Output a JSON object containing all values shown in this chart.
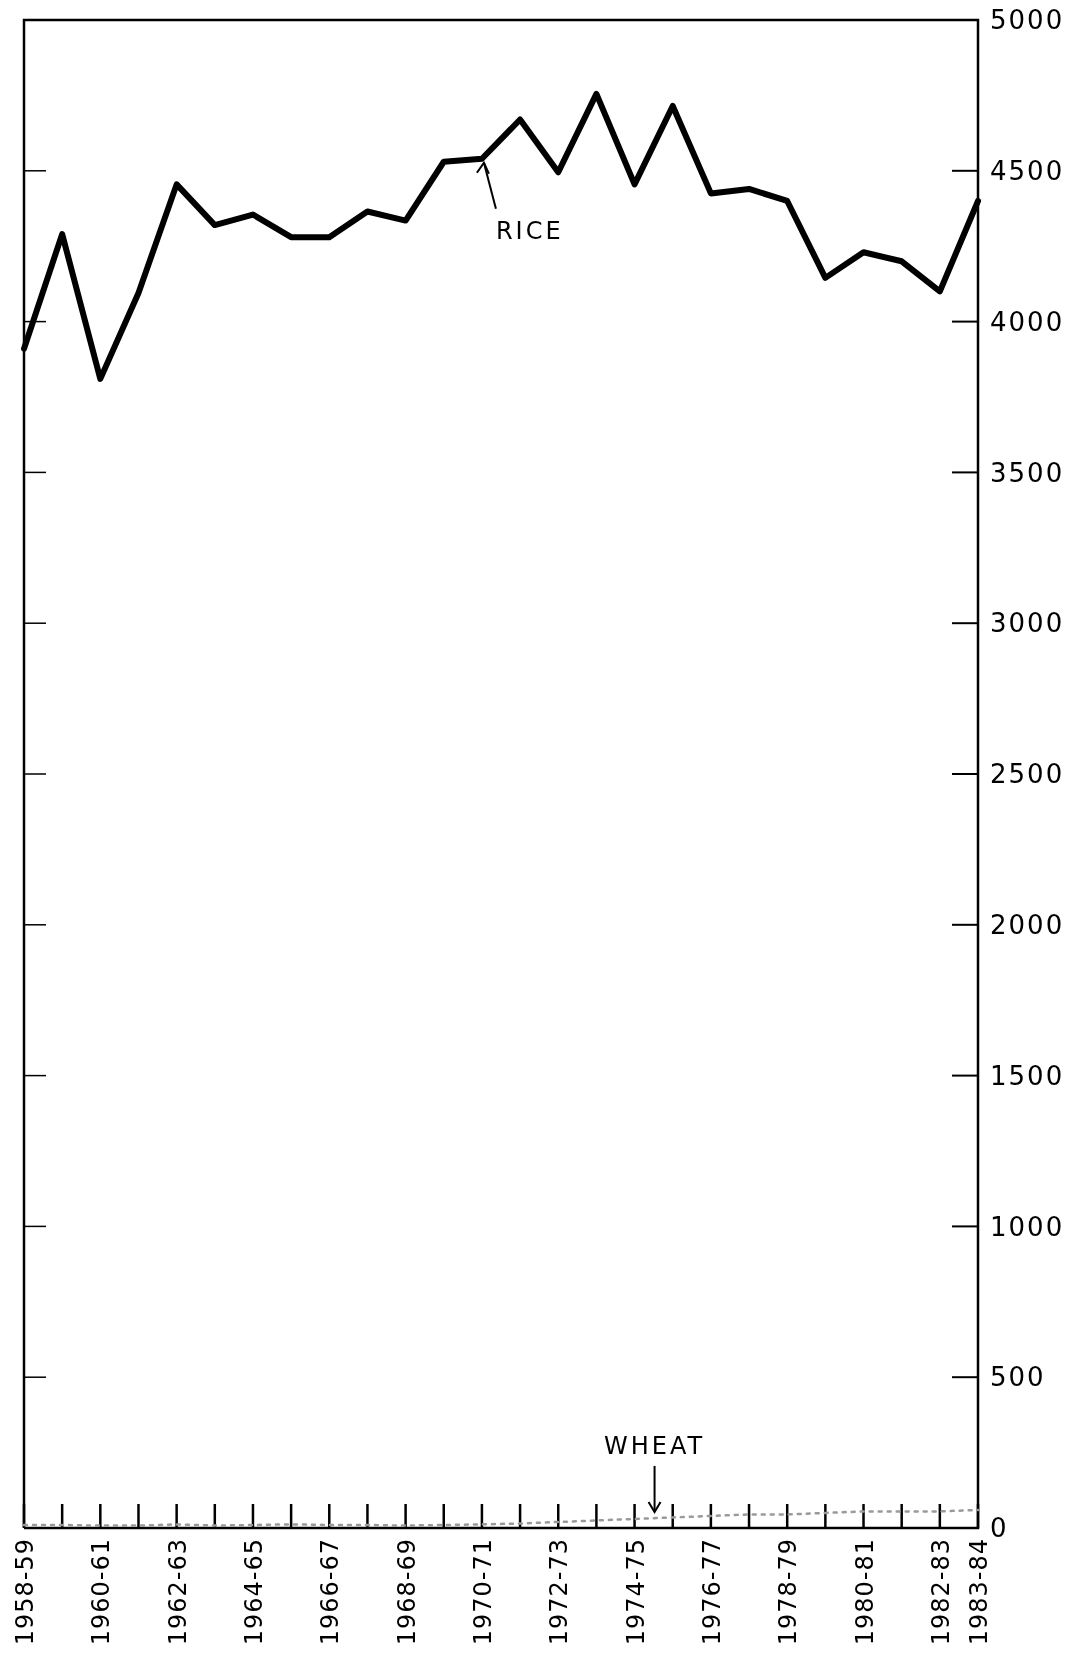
{
  "chart_data": {
    "type": "line",
    "categories": [
      "1958-59",
      null,
      "1960-61",
      null,
      "1962-63",
      null,
      "1964-65",
      null,
      "1966-67",
      null,
      "1968-69",
      null,
      "1970-71",
      null,
      "1972-73",
      null,
      "1974-75",
      null,
      "1976-77",
      null,
      "1978-79",
      null,
      "1980-81",
      null,
      "1982-83",
      "1983-84"
    ],
    "series": [
      {
        "color": "#000000",
        "line_style": "solid",
        "values": [
          3910,
          4290,
          3810,
          4095,
          4455,
          4320,
          4355,
          4280,
          4280,
          4365,
          4335,
          4530,
          4540,
          4670,
          4495,
          4755,
          4455,
          4715,
          4425,
          4440,
          4400,
          4145,
          4230,
          4200,
          4100,
          4400
        ]
      },
      {
        "color": "#9a9a9a",
        "line_style": "dotted",
        "values": [
          10,
          10,
          8,
          8,
          12,
          8,
          10,
          12,
          10,
          10,
          8,
          10,
          12,
          15,
          20,
          25,
          30,
          35,
          40,
          45,
          45,
          50,
          55,
          55,
          55,
          60
        ]
      }
    ],
    "ylim": [
      0,
      5000
    ],
    "yticks": [
      0,
      500,
      1000,
      1500,
      2000,
      2500,
      3000,
      3500,
      4000,
      4500,
      5000
    ],
    "grid": false,
    "marker": "none",
    "annotations": [
      {
        "text": "RICE",
        "x": "1970-71",
        "y": 4540
      },
      {
        "text": "WHEAT",
        "x": "1974-75",
        "y": 40
      }
    ]
  }
}
